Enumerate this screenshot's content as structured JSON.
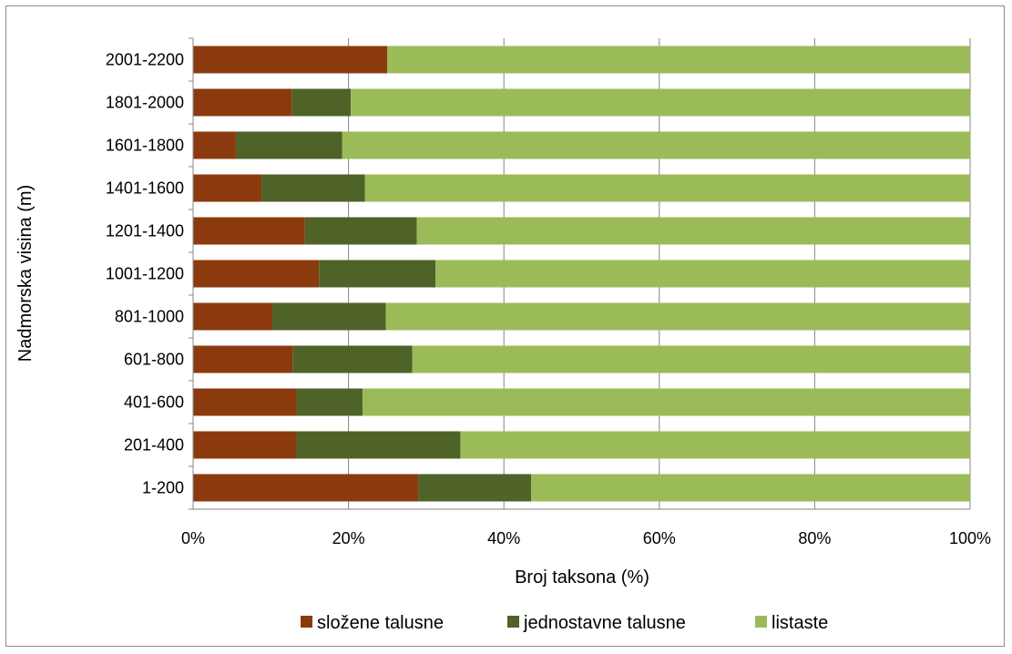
{
  "chart_data": {
    "type": "bar",
    "orientation": "horizontal",
    "stacked": "percent",
    "categories": [
      "1-200",
      "201-400",
      "401-600",
      "601-800",
      "801-1000",
      "1001-1200",
      "1201-1400",
      "1401-1600",
      "1601-1800",
      "1801-2000",
      "2001-2200"
    ],
    "series": [
      {
        "name": "složene talusne",
        "color": "#8B3A0E",
        "values": [
          29,
          13.3,
          13.3,
          12.8,
          10.2,
          16.2,
          14.4,
          8.8,
          5.5,
          12.7,
          25
        ]
      },
      {
        "name": "jednostavne talusne",
        "color": "#4F6228",
        "values": [
          14.5,
          21.1,
          8.5,
          15.4,
          14.6,
          15,
          14.4,
          13.3,
          13.7,
          7.6,
          0
        ]
      },
      {
        "name": "listaste",
        "color": "#9BBB59",
        "values": [
          56.5,
          65.6,
          78.2,
          71.8,
          75.2,
          68.8,
          71.2,
          77.9,
          80.8,
          79.7,
          75
        ]
      }
    ],
    "title": "",
    "xlabel": "Broj taksona (%)",
    "ylabel": "Nadmorska visina (m)",
    "xlim": [
      0,
      100
    ],
    "x_ticks": [
      "0%",
      "20%",
      "40%",
      "60%",
      "80%",
      "100%"
    ],
    "grid": "vertical major gridlines",
    "legend": "bottom"
  }
}
